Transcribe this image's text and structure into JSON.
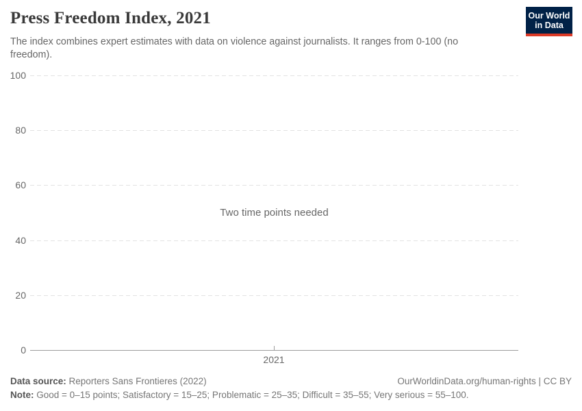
{
  "header": {
    "title": "Press Freedom Index, 2021",
    "subtitle": "The index combines expert estimates with data on violence against journalists. It ranges from 0-100 (no freedom).",
    "logo": {
      "line1": "Our World",
      "line2": "in Data",
      "bg_color": "#002147",
      "accent_color": "#dc3a27"
    }
  },
  "chart_data": {
    "type": "line",
    "title": "Press Freedom Index, 2021",
    "message": "Two time points needed",
    "series": [],
    "categories": [
      2021
    ],
    "xticks": [
      "2021"
    ],
    "yticks": [
      0,
      20,
      40,
      60,
      80,
      100
    ],
    "ylim": [
      0,
      100
    ],
    "xlabel": "",
    "ylabel": "",
    "grid": "horizontal-dashed",
    "legend": "none"
  },
  "footer": {
    "datasource_label": "Data source:",
    "datasource_value": "Reporters Sans Frontieres (2022)",
    "link": "OurWorldinData.org/human-rights | CC BY",
    "note_label": "Note:",
    "note_value": "Good = 0–15 points; Satisfactory = 15–25; Problematic = 25–35; Difficult = 35–55; Very serious = 55–100."
  }
}
